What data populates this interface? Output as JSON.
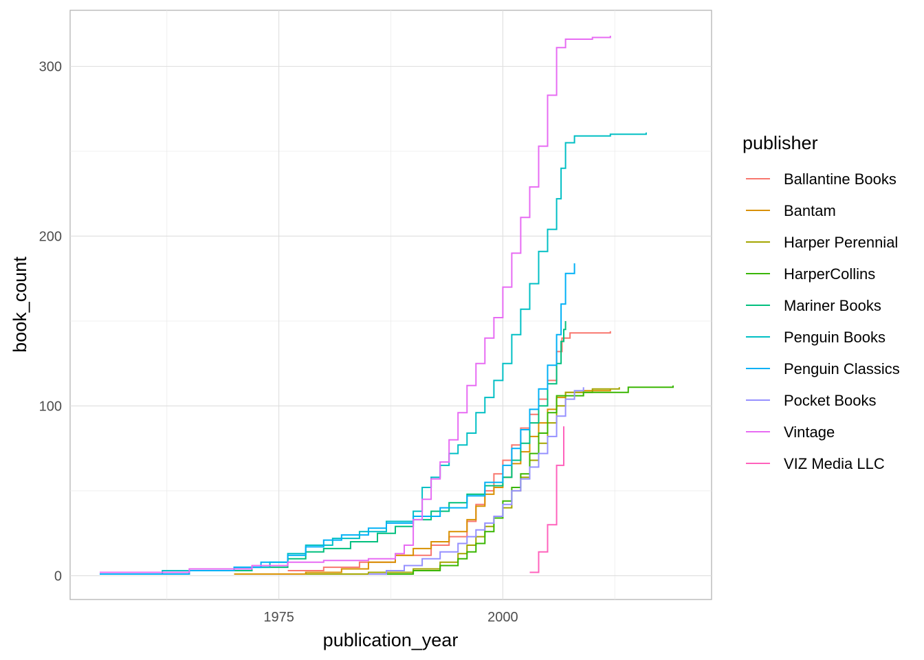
{
  "chart_data": {
    "type": "line",
    "step": true,
    "xlabel": "publication_year",
    "ylabel": "book_count",
    "xlim": [
      1951.7,
      2023.3
    ],
    "ylim": [
      -14,
      333
    ],
    "x_ticks": [
      1975,
      2000
    ],
    "x_tick_labels": [
      "1975",
      "2000"
    ],
    "x_minor": [
      1962.5,
      1987.5,
      2012.5
    ],
    "y_ticks": [
      0,
      100,
      200,
      300
    ],
    "y_tick_labels": [
      "0",
      "100",
      "200",
      "300"
    ],
    "y_minor": [
      50,
      150,
      250
    ],
    "grid": true,
    "legend_title": "publisher",
    "legend_position": "right",
    "series": [
      {
        "name": "Ballantine Books",
        "color": "#F8766D",
        "points": [
          [
            1976,
            3
          ],
          [
            1980,
            5
          ],
          [
            1984,
            8
          ],
          [
            1988,
            12
          ],
          [
            1992,
            18
          ],
          [
            1994,
            23
          ],
          [
            1996,
            32
          ],
          [
            1997,
            42
          ],
          [
            1998,
            50
          ],
          [
            1999,
            60
          ],
          [
            2000,
            68
          ],
          [
            2001,
            77
          ],
          [
            2002,
            87
          ],
          [
            2003,
            95
          ],
          [
            2004,
            104
          ],
          [
            2005,
            115
          ],
          [
            2006,
            132
          ],
          [
            2006.6,
            140
          ],
          [
            2007.5,
            143
          ],
          [
            2009,
            143
          ],
          [
            2012,
            144
          ]
        ]
      },
      {
        "name": "Bantam",
        "color": "#D89000",
        "points": [
          [
            1970,
            1
          ],
          [
            1978,
            2
          ],
          [
            1982,
            4
          ],
          [
            1985,
            8
          ],
          [
            1988,
            12
          ],
          [
            1990,
            16
          ],
          [
            1992,
            20
          ],
          [
            1994,
            26
          ],
          [
            1996,
            33
          ],
          [
            1997,
            41
          ],
          [
            1998,
            48
          ],
          [
            1999,
            52
          ],
          [
            2000,
            58
          ],
          [
            2001,
            66
          ],
          [
            2002,
            73
          ],
          [
            2003,
            82
          ],
          [
            2004,
            90
          ],
          [
            2005,
            98
          ],
          [
            2006,
            105
          ],
          [
            2007,
            108
          ],
          [
            2009,
            109
          ],
          [
            2012,
            110
          ]
        ]
      },
      {
        "name": "Harper Perennial",
        "color": "#A3A500",
        "points": [
          [
            1978,
            1
          ],
          [
            1985,
            2
          ],
          [
            1990,
            4
          ],
          [
            1993,
            8
          ],
          [
            1995,
            13
          ],
          [
            1996,
            18
          ],
          [
            1997,
            23
          ],
          [
            1998,
            29
          ],
          [
            1999,
            34
          ],
          [
            2000,
            40
          ],
          [
            2001,
            50
          ],
          [
            2002,
            58
          ],
          [
            2003,
            68
          ],
          [
            2004,
            78
          ],
          [
            2005,
            90
          ],
          [
            2006,
            100
          ],
          [
            2007,
            108
          ],
          [
            2010,
            110
          ],
          [
            2013,
            111
          ]
        ]
      },
      {
        "name": "HarperCollins",
        "color": "#39B600",
        "points": [
          [
            1985,
            1
          ],
          [
            1990,
            3
          ],
          [
            1993,
            6
          ],
          [
            1995,
            10
          ],
          [
            1996,
            14
          ],
          [
            1997,
            19
          ],
          [
            1998,
            26
          ],
          [
            1999,
            34
          ],
          [
            2000,
            44
          ],
          [
            2001,
            52
          ],
          [
            2002,
            60
          ],
          [
            2003,
            72
          ],
          [
            2004,
            84
          ],
          [
            2005,
            96
          ],
          [
            2006,
            106
          ],
          [
            2009,
            108
          ],
          [
            2014,
            111
          ],
          [
            2019,
            112
          ]
        ]
      },
      {
        "name": "Mariner Books",
        "color": "#00BF7D",
        "points": [
          [
            1955,
            1
          ],
          [
            1965,
            3
          ],
          [
            1972,
            5
          ],
          [
            1976,
            10
          ],
          [
            1978,
            14
          ],
          [
            1980,
            16
          ],
          [
            1983,
            20
          ],
          [
            1986,
            25
          ],
          [
            1988,
            29
          ],
          [
            1990,
            33
          ],
          [
            1992,
            38
          ],
          [
            1994,
            43
          ],
          [
            1996,
            48
          ],
          [
            1998,
            53
          ],
          [
            2000,
            58
          ],
          [
            2001,
            68
          ],
          [
            2002,
            78
          ],
          [
            2003,
            90
          ],
          [
            2004,
            100
          ],
          [
            2005,
            113
          ],
          [
            2006,
            125
          ],
          [
            2006.5,
            138
          ],
          [
            2006.8,
            145
          ],
          [
            2007,
            150
          ]
        ]
      },
      {
        "name": "Penguin Books",
        "color": "#00BFC4",
        "points": [
          [
            1955,
            1
          ],
          [
            1962,
            3
          ],
          [
            1970,
            5
          ],
          [
            1974,
            8
          ],
          [
            1976,
            13
          ],
          [
            1978,
            18
          ],
          [
            1981,
            22
          ],
          [
            1984,
            26
          ],
          [
            1987,
            32
          ],
          [
            1990,
            38
          ],
          [
            1991,
            52
          ],
          [
            1992,
            58
          ],
          [
            1993,
            65
          ],
          [
            1994,
            72
          ],
          [
            1995,
            77
          ],
          [
            1996,
            84
          ],
          [
            1997,
            96
          ],
          [
            1998,
            105
          ],
          [
            1999,
            115
          ],
          [
            2000,
            125
          ],
          [
            2001,
            142
          ],
          [
            2002,
            157
          ],
          [
            2003,
            172
          ],
          [
            2004,
            191
          ],
          [
            2005,
            204
          ],
          [
            2006,
            222
          ],
          [
            2006.5,
            240
          ],
          [
            2007,
            255
          ],
          [
            2008,
            259
          ],
          [
            2012,
            260
          ],
          [
            2016,
            261
          ]
        ]
      },
      {
        "name": "Penguin Classics",
        "color": "#00B0F6",
        "points": [
          [
            1955,
            1
          ],
          [
            1965,
            3
          ],
          [
            1970,
            5
          ],
          [
            1973,
            8
          ],
          [
            1976,
            12
          ],
          [
            1978,
            17
          ],
          [
            1980,
            21
          ],
          [
            1982,
            24
          ],
          [
            1985,
            28
          ],
          [
            1987,
            31
          ],
          [
            1990,
            35
          ],
          [
            1993,
            40
          ],
          [
            1996,
            47
          ],
          [
            1998,
            55
          ],
          [
            2000,
            65
          ],
          [
            2001,
            75
          ],
          [
            2002,
            86
          ],
          [
            2003,
            98
          ],
          [
            2004,
            110
          ],
          [
            2005,
            124
          ],
          [
            2006,
            142
          ],
          [
            2006.5,
            160
          ],
          [
            2007,
            178
          ],
          [
            2008,
            184
          ]
        ]
      },
      {
        "name": "Pocket Books",
        "color": "#9590FF",
        "points": [
          [
            1985,
            1
          ],
          [
            1987,
            3
          ],
          [
            1989,
            6
          ],
          [
            1991,
            10
          ],
          [
            1993,
            14
          ],
          [
            1995,
            19
          ],
          [
            1996,
            23
          ],
          [
            1997,
            27
          ],
          [
            1998,
            31
          ],
          [
            1999,
            35
          ],
          [
            2000,
            42
          ],
          [
            2001,
            50
          ],
          [
            2002,
            57
          ],
          [
            2003,
            64
          ],
          [
            2004,
            72
          ],
          [
            2005,
            82
          ],
          [
            2006,
            94
          ],
          [
            2007,
            104
          ],
          [
            2008,
            109
          ],
          [
            2009,
            111
          ]
        ]
      },
      {
        "name": "Vintage",
        "color": "#E76BF3",
        "points": [
          [
            1955,
            2
          ],
          [
            1965,
            4
          ],
          [
            1972,
            6
          ],
          [
            1976,
            8
          ],
          [
            1980,
            9
          ],
          [
            1985,
            10
          ],
          [
            1988,
            13
          ],
          [
            1989,
            18
          ],
          [
            1990,
            33
          ],
          [
            1991,
            45
          ],
          [
            1992,
            57
          ],
          [
            1993,
            67
          ],
          [
            1994,
            80
          ],
          [
            1995,
            96
          ],
          [
            1996,
            112
          ],
          [
            1997,
            125
          ],
          [
            1998,
            140
          ],
          [
            1999,
            152
          ],
          [
            2000,
            170
          ],
          [
            2001,
            190
          ],
          [
            2002,
            211
          ],
          [
            2003,
            229
          ],
          [
            2004,
            253
          ],
          [
            2005,
            283
          ],
          [
            2006,
            311
          ],
          [
            2007,
            316
          ],
          [
            2010,
            317
          ],
          [
            2012,
            318
          ]
        ]
      },
      {
        "name": "VIZ Media LLC",
        "color": "#FF62BC",
        "points": [
          [
            2003,
            2
          ],
          [
            2004,
            14
          ],
          [
            2005,
            30
          ],
          [
            2006,
            65
          ],
          [
            2006.8,
            88
          ]
        ]
      }
    ]
  }
}
